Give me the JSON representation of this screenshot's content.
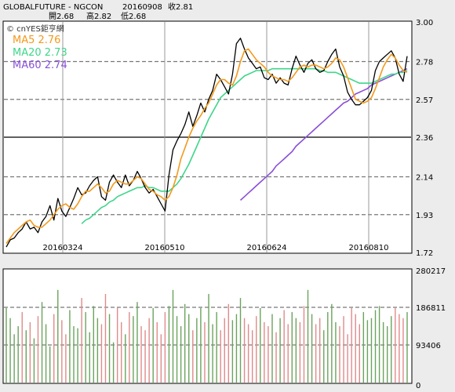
{
  "header": {
    "symbol": "GLOBALFUTURE - NGCON",
    "date": "20160908",
    "close_label": "收2.81",
    "open_label": "開2.68",
    "high_label": "高2.82",
    "low_label": "低2.68"
  },
  "legend": {
    "watermark": "© cnYES鉅亨網",
    "ma5": "MA5 2.76",
    "ma20": "MA20 2.73",
    "ma60": "MA60 2.74"
  },
  "colors": {
    "price": "#000000",
    "ma5": "#f29a1c",
    "ma20": "#3fd68a",
    "ma60": "#8a4fd8",
    "vol_up": "#6aa35c",
    "vol_down": "#e08a8a",
    "background": "#ffffff",
    "grid": "#888888"
  },
  "chart_data": [
    {
      "type": "line",
      "panel": "price",
      "ylim": [
        1.72,
        3.0
      ],
      "yticks": [
        "3.00",
        "2.78",
        "2.57",
        "2.36",
        "2.14",
        "1.93",
        "1.72"
      ],
      "xticks": [
        "20160324",
        "20160510",
        "20160624",
        "20160810"
      ],
      "series": [
        {
          "name": "MA5",
          "values": [
            1.77,
            1.8,
            1.83,
            1.85,
            1.87,
            1.89,
            1.9,
            1.87,
            1.86,
            1.86,
            1.88,
            1.9,
            1.93,
            1.96,
            1.98,
            1.99,
            1.97,
            1.96,
            1.99,
            2.03,
            2.06,
            2.06,
            2.08,
            2.1,
            2.08,
            2.05,
            2.06,
            2.1,
            2.12,
            2.11,
            2.1,
            2.1,
            2.12,
            2.14,
            2.13,
            2.1,
            2.07,
            2.06,
            2.04,
            2.03,
            2.01,
            2.03,
            2.08,
            2.15,
            2.24,
            2.3,
            2.36,
            2.41,
            2.45,
            2.48,
            2.52,
            2.55,
            2.6,
            2.65,
            2.68,
            2.68,
            2.66,
            2.65,
            2.7,
            2.78,
            2.84,
            2.85,
            2.82,
            2.79,
            2.77,
            2.75,
            2.72,
            2.7,
            2.69,
            2.68,
            2.68,
            2.67,
            2.69,
            2.72,
            2.75,
            2.76,
            2.75,
            2.76,
            2.76,
            2.75,
            2.74,
            2.75,
            2.77,
            2.8,
            2.79,
            2.75,
            2.69,
            2.63,
            2.57,
            2.56,
            2.55,
            2.56,
            2.58,
            2.63,
            2.69,
            2.75,
            2.79,
            2.82,
            2.8,
            2.76,
            2.73,
            2.72
          ]
        },
        {
          "name": "MA20",
          "values": [
            null,
            null,
            null,
            null,
            null,
            null,
            null,
            null,
            null,
            null,
            null,
            null,
            null,
            null,
            null,
            null,
            null,
            null,
            null,
            1.88,
            1.9,
            1.91,
            1.93,
            1.95,
            1.97,
            1.98,
            2.0,
            2.01,
            2.03,
            2.04,
            2.05,
            2.06,
            2.07,
            2.08,
            2.08,
            2.09,
            2.08,
            2.08,
            2.07,
            2.06,
            2.06,
            2.06,
            2.08,
            2.1,
            2.13,
            2.17,
            2.21,
            2.26,
            2.31,
            2.36,
            2.41,
            2.46,
            2.5,
            2.54,
            2.58,
            2.6,
            2.62,
            2.64,
            2.66,
            2.68,
            2.7,
            2.71,
            2.72,
            2.73,
            2.73,
            2.73,
            2.73,
            2.74,
            2.74,
            2.74,
            2.74,
            2.74,
            2.74,
            2.74,
            2.74,
            2.74,
            2.74,
            2.74,
            2.74,
            2.73,
            2.73,
            2.72,
            2.72,
            2.72,
            2.71,
            2.7,
            2.69,
            2.68,
            2.67,
            2.66,
            2.66,
            2.66,
            2.66,
            2.67,
            2.68,
            2.69,
            2.7,
            2.71,
            2.71,
            2.72,
            2.72,
            2.73
          ]
        },
        {
          "name": "MA60",
          "values": [
            null,
            null,
            null,
            null,
            null,
            null,
            null,
            null,
            null,
            null,
            null,
            null,
            null,
            null,
            null,
            null,
            null,
            null,
            null,
            null,
            null,
            null,
            null,
            null,
            null,
            null,
            null,
            null,
            null,
            null,
            null,
            null,
            null,
            null,
            null,
            null,
            null,
            null,
            null,
            null,
            null,
            null,
            null,
            null,
            null,
            null,
            null,
            null,
            null,
            null,
            null,
            null,
            null,
            null,
            null,
            null,
            null,
            null,
            null,
            2.01,
            2.03,
            2.05,
            2.07,
            2.09,
            2.11,
            2.13,
            2.15,
            2.17,
            2.2,
            2.22,
            2.24,
            2.26,
            2.28,
            2.31,
            2.33,
            2.35,
            2.37,
            2.39,
            2.41,
            2.43,
            2.45,
            2.47,
            2.49,
            2.51,
            2.53,
            2.55,
            2.56,
            2.58,
            2.6,
            2.61,
            2.62,
            2.63,
            2.65,
            2.66,
            2.67,
            2.68,
            2.69,
            2.7,
            2.71,
            2.72,
            2.73,
            2.74
          ]
        },
        {
          "name": "",
          "values": [
            1.75,
            1.79,
            1.8,
            1.83,
            1.85,
            1.89,
            1.85,
            1.86,
            1.83,
            1.89,
            1.92,
            1.98,
            1.9,
            2.02,
            1.95,
            1.92,
            1.97,
            2.02,
            2.08,
            2.04,
            2.05,
            2.09,
            2.12,
            2.14,
            2.03,
            2.01,
            2.11,
            2.15,
            2.11,
            2.08,
            2.15,
            2.09,
            2.12,
            2.17,
            2.13,
            2.08,
            2.05,
            2.07,
            2.03,
            1.99,
            1.95,
            2.15,
            2.29,
            2.34,
            2.38,
            2.43,
            2.5,
            2.42,
            2.48,
            2.55,
            2.5,
            2.57,
            2.62,
            2.71,
            2.68,
            2.64,
            2.6,
            2.71,
            2.88,
            2.91,
            2.85,
            2.8,
            2.77,
            2.74,
            2.75,
            2.69,
            2.68,
            2.71,
            2.66,
            2.69,
            2.66,
            2.65,
            2.74,
            2.81,
            2.76,
            2.72,
            2.77,
            2.79,
            2.74,
            2.72,
            2.73,
            2.78,
            2.82,
            2.85,
            2.75,
            2.7,
            2.61,
            2.57,
            2.54,
            2.54,
            2.56,
            2.58,
            2.62,
            2.73,
            2.78,
            2.8,
            2.82,
            2.84,
            2.8,
            2.71,
            2.67,
            2.81
          ]
        }
      ]
    },
    {
      "type": "bar",
      "panel": "volume",
      "ylim": [
        0,
        280217
      ],
      "yticks": [
        "280217",
        "186811",
        "93406",
        "0"
      ],
      "series": [
        {
          "name": "",
          "values": [
            185000,
            160000,
            120000,
            140000,
            175000,
            130000,
            150000,
            110000,
            165000,
            200000,
            145000,
            90000,
            170000,
            230000,
            155000,
            120000,
            180000,
            140000,
            135000,
            210000,
            175000,
            125000,
            190000,
            160000,
            145000,
            220000,
            170000,
            100000,
            185000,
            150000,
            120000,
            175000,
            165000,
            200000,
            140000,
            130000,
            160000,
            185000,
            150000,
            120000,
            175000,
            190000,
            230000,
            165000,
            140000,
            195000,
            170000,
            130000,
            160000,
            185000,
            150000,
            220000,
            145000,
            175000,
            130000,
            160000,
            195000,
            155000,
            170000,
            210000,
            160000,
            145000,
            130000,
            165000,
            185000,
            150000,
            140000,
            170000,
            125000,
            160000,
            180000,
            145000,
            175000,
            160000,
            150000,
            190000,
            230000,
            170000,
            145000,
            160000,
            130000,
            175000,
            195000,
            150000,
            140000,
            165000,
            120000,
            185000,
            170000,
            145000,
            175000,
            155000,
            160000,
            180000,
            190000,
            150000,
            140000,
            165000,
            185000,
            170000,
            160000,
            175000
          ],
          "direction": [
            1,
            1,
            1,
            1,
            0,
            1,
            0,
            1,
            0,
            1,
            1,
            1,
            0,
            1,
            0,
            0,
            1,
            1,
            1,
            0,
            1,
            1,
            1,
            1,
            0,
            0,
            1,
            1,
            0,
            0,
            1,
            0,
            1,
            1,
            0,
            0,
            0,
            1,
            0,
            0,
            0,
            1,
            1,
            1,
            1,
            1,
            1,
            0,
            1,
            1,
            0,
            1,
            1,
            1,
            0,
            0,
            0,
            1,
            1,
            1,
            0,
            0,
            0,
            0,
            1,
            0,
            0,
            1,
            0,
            1,
            0,
            0,
            1,
            1,
            0,
            0,
            1,
            1,
            0,
            0,
            1,
            1,
            1,
            1,
            0,
            0,
            0,
            0,
            0,
            0,
            1,
            1,
            1,
            1,
            1,
            1,
            1,
            1,
            0,
            0,
            0,
            1
          ]
        }
      ]
    }
  ]
}
